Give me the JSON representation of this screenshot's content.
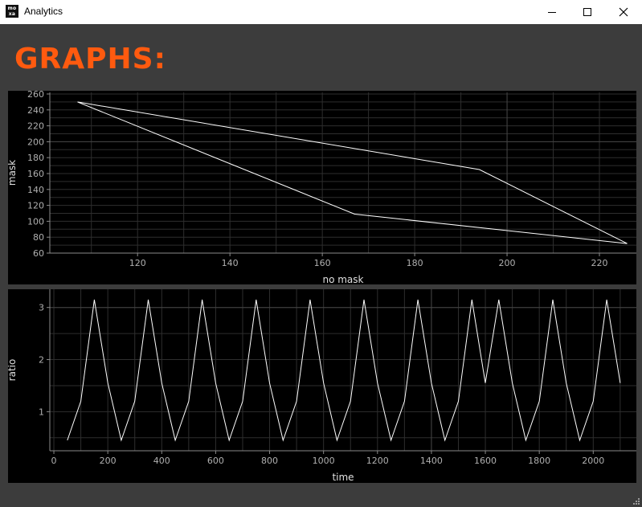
{
  "window": {
    "title": "Analytics",
    "icon_text_top": "mo",
    "icon_text_bottom": "xa",
    "controls": [
      "minimize-icon",
      "maximize-icon",
      "close-icon"
    ]
  },
  "heading": "GRAPHS:",
  "colors": {
    "accent": "#ff5a0f",
    "background": "#3c3c3c",
    "plot_background": "#000000",
    "line": "#ffffff"
  },
  "chart_data": [
    {
      "type": "line",
      "title": "",
      "xlabel": "no mask",
      "ylabel": "mask",
      "xlim": [
        101,
        228
      ],
      "ylim": [
        60,
        262
      ],
      "xticks": [
        120,
        140,
        160,
        180,
        200,
        220
      ],
      "yticks": [
        60,
        80,
        100,
        120,
        140,
        160,
        180,
        200,
        220,
        240,
        260
      ],
      "grid": true,
      "series": [
        {
          "x": [
            107,
            167,
            226,
            194,
            107
          ],
          "y": [
            250,
            109,
            72,
            165,
            250
          ]
        }
      ]
    },
    {
      "type": "line",
      "title": "",
      "xlabel": "time",
      "ylabel": "ratio",
      "xlim": [
        -15,
        2160
      ],
      "ylim": [
        0.25,
        3.35
      ],
      "xticks": [
        0,
        200,
        400,
        600,
        800,
        1000,
        1200,
        1400,
        1600,
        1800,
        2000
      ],
      "yticks": [
        1,
        2,
        3
      ],
      "grid": true,
      "series": [
        {
          "x": [
            50,
            100,
            150,
            200,
            250,
            300,
            350,
            400,
            450,
            500,
            550,
            600,
            650,
            700,
            750,
            800,
            850,
            900,
            950,
            1000,
            1050,
            1100,
            1150,
            1200,
            1250,
            1300,
            1350,
            1400,
            1450,
            1500,
            1550,
            1600,
            1650,
            1700,
            1750,
            1800,
            1850,
            1900,
            1950,
            2000,
            2050,
            2100
          ],
          "y": [
            0.45,
            1.2,
            3.15,
            1.55,
            0.45,
            1.2,
            3.15,
            1.55,
            0.45,
            1.2,
            3.15,
            1.55,
            0.45,
            1.2,
            3.15,
            1.55,
            0.45,
            1.2,
            3.15,
            1.55,
            0.45,
            1.2,
            3.15,
            1.55,
            0.45,
            1.2,
            3.15,
            1.55,
            0.45,
            1.2,
            3.15,
            1.55,
            3.15,
            1.55,
            0.45,
            1.2,
            3.15,
            1.55,
            0.45,
            1.2,
            3.15,
            1.55
          ]
        }
      ]
    }
  ]
}
